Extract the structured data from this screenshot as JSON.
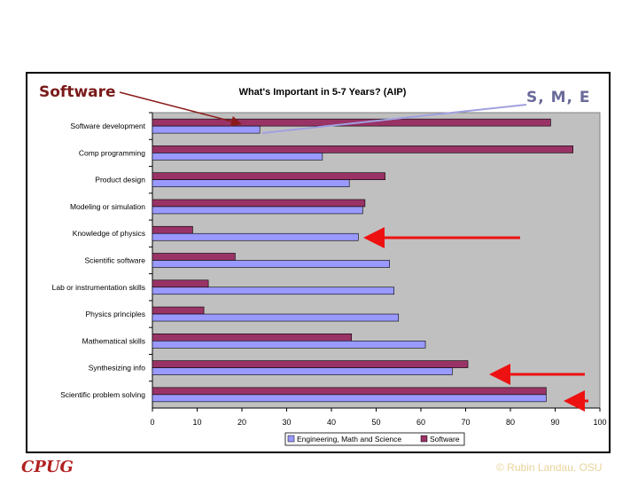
{
  "slide": {
    "left_label": "Software",
    "right_label": "S, M, E",
    "logo_text": "CPUG",
    "copyright": "© Rubin Landau, OSU"
  },
  "chart_data": {
    "type": "bar",
    "orientation": "horizontal",
    "title": "What's Important in 5-7 Years? (AIP)",
    "categories": [
      "Software development",
      "Comp programming",
      "Product design",
      "Modeling or simulation",
      "Knowledge of physics",
      "Scientific software",
      "Lab or instrumentation skills",
      "Physics principles",
      "Mathematical skills",
      "Synthesizing info",
      "Scientific problem solving"
    ],
    "series": [
      {
        "name": "Engineering, Math and Science",
        "color": "#9999ff",
        "values": [
          24,
          38,
          44,
          47,
          46,
          53,
          54,
          55,
          61,
          67,
          88
        ]
      },
      {
        "name": "Software",
        "color": "#993366",
        "values": [
          89,
          94,
          52,
          47.5,
          9,
          18.5,
          12.5,
          11.5,
          44.5,
          70.5,
          88
        ]
      }
    ],
    "xlim": [
      0,
      100
    ],
    "xticks": [
      0,
      10,
      20,
      30,
      40,
      50,
      60,
      70,
      80,
      90,
      100
    ],
    "grid": false,
    "plot_background": "#c0c0c0",
    "legend": "bottom"
  },
  "annotations": {
    "red_arrow_color": "#ee1111",
    "pointer_line_left_color": "#8b1a1a",
    "pointer_line_right_color": "#a0a0e0"
  }
}
